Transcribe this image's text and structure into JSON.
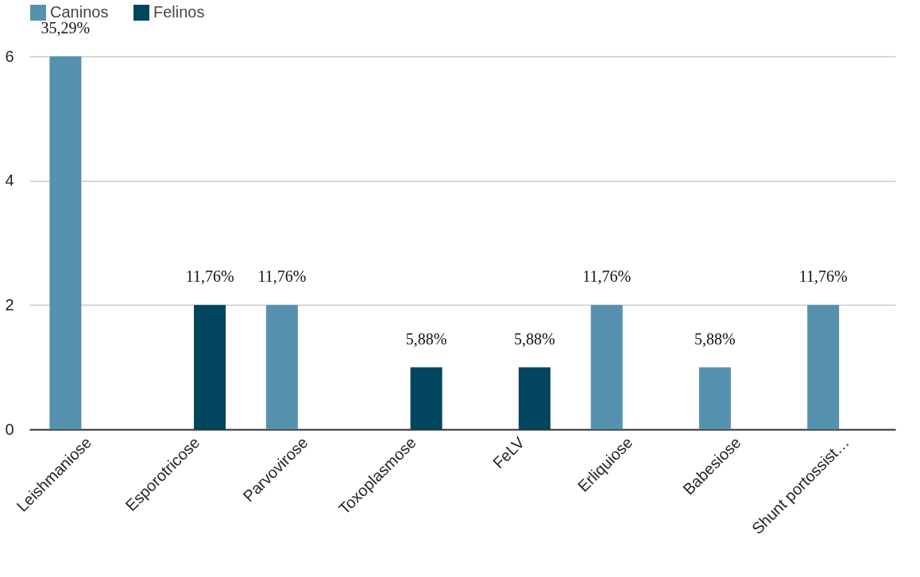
{
  "chart_data": {
    "type": "bar",
    "categories": [
      "Leishmaniose",
      "Esporotricose",
      "Parvovirose",
      "Toxoplasmose",
      "FeLV",
      "Erliquiose",
      "Babesiose",
      "Shunt portossist…"
    ],
    "series": [
      {
        "name": "Caninos",
        "color": "#5691b0",
        "values": [
          6,
          null,
          2,
          null,
          null,
          2,
          1,
          2
        ]
      },
      {
        "name": "Felinos",
        "color": "#02455f",
        "values": [
          null,
          2,
          null,
          1,
          1,
          null,
          null,
          null
        ]
      }
    ],
    "annotations": [
      "35,29%",
      "11,76%",
      "11,76%",
      "5,88%",
      "5,88%",
      "11,76%",
      "5,88%",
      "11,76%"
    ],
    "ylim": [
      0,
      6
    ],
    "yticks": [
      0,
      2,
      4,
      6
    ],
    "grid": "y",
    "legend": "top"
  }
}
